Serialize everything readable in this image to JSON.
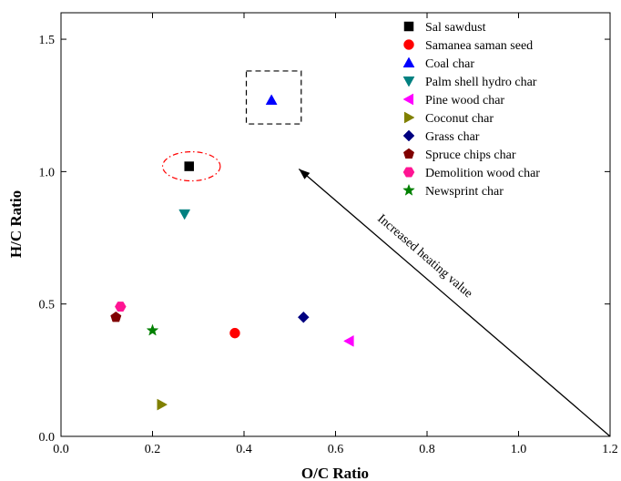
{
  "chart_data": {
    "type": "scatter",
    "xlabel": "O/C Ratio",
    "ylabel": "H/C Ratio",
    "xlim": [
      0.0,
      1.2
    ],
    "ylim": [
      0.0,
      1.6
    ],
    "xticks": [
      "0.0",
      "0.2",
      "0.4",
      "0.6",
      "0.8",
      "1.0",
      "1.2"
    ],
    "yticks": [
      "0.0",
      "0.5",
      "1.0",
      "1.5"
    ],
    "grid": false,
    "legend_position": "top-right",
    "series": [
      {
        "name": "Sal sawdust",
        "marker": "square",
        "color": "#000000",
        "x": 0.28,
        "y": 1.02
      },
      {
        "name": "Samanea saman seed",
        "marker": "circle",
        "color": "#ff0000",
        "x": 0.38,
        "y": 0.39
      },
      {
        "name": "Coal char",
        "marker": "triangle-up",
        "color": "#0000ff",
        "x": 0.46,
        "y": 1.27
      },
      {
        "name": "Palm shell hydro char",
        "marker": "triangle-down",
        "color": "#008080",
        "x": 0.27,
        "y": 0.84
      },
      {
        "name": "Pine wood char",
        "marker": "triangle-left",
        "color": "#ff00ff",
        "x": 0.63,
        "y": 0.36
      },
      {
        "name": "Coconut char",
        "marker": "triangle-right",
        "color": "#808000",
        "x": 0.22,
        "y": 0.12
      },
      {
        "name": "Grass char",
        "marker": "diamond",
        "color": "#000080",
        "x": 0.53,
        "y": 0.45
      },
      {
        "name": "Spruce chips char",
        "marker": "pentagon",
        "color": "#800000",
        "x": 0.12,
        "y": 0.45
      },
      {
        "name": "Demolition wood char",
        "marker": "hexagon",
        "color": "#ff1493",
        "x": 0.13,
        "y": 0.49
      },
      {
        "name": "Newsprint char",
        "marker": "star",
        "color": "#008000",
        "x": 0.2,
        "y": 0.4
      }
    ],
    "annotations": [
      {
        "kind": "arrow",
        "text": "Increased heating value",
        "from": [
          1.2,
          0.0
        ],
        "to": [
          0.52,
          1.01
        ]
      },
      {
        "kind": "dashed-box",
        "color": "#000000",
        "x_range": [
          0.405,
          0.525
        ],
        "y_range": [
          1.18,
          1.38
        ]
      },
      {
        "kind": "dash-dot-ellipse",
        "color": "#ff0000",
        "center": [
          0.285,
          1.02
        ],
        "radius_x": 0.063,
        "radius_y": 0.055
      }
    ]
  }
}
